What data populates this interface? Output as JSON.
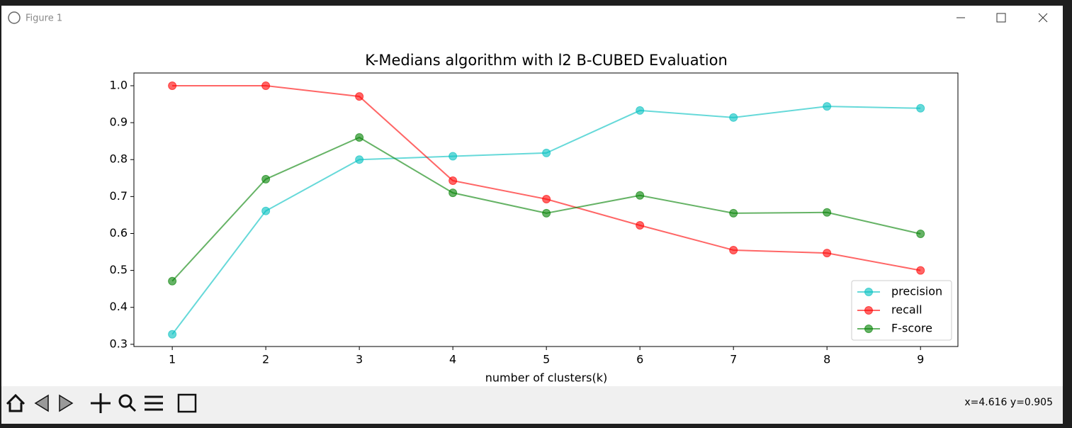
{
  "window": {
    "title": "Figure 1",
    "status": "x=4.616 y=0.905"
  },
  "chart_data": {
    "type": "line",
    "title": "K-Medians algorithm with l2 B-CUBED Evaluation",
    "x_label": "number of clusters(k)",
    "x": [
      1,
      2,
      3,
      4,
      5,
      6,
      7,
      8,
      9
    ],
    "series": [
      {
        "name": "precision",
        "color": "#00bfbf",
        "values": [
          0.327,
          0.661,
          0.8,
          0.809,
          0.818,
          0.933,
          0.914,
          0.944,
          0.939
        ]
      },
      {
        "name": "recall",
        "color": "#ff0000",
        "values": [
          1,
          1,
          0.971,
          0.743,
          0.693,
          0.622,
          0.555,
          0.547,
          0.5
        ]
      },
      {
        "name": "F-score",
        "color": "#008000",
        "values": [
          0.471,
          0.747,
          0.86,
          0.71,
          0.655,
          0.703,
          0.655,
          0.657,
          0.599
        ]
      }
    ],
    "xlim": [
      0.59,
      9.4
    ],
    "ylim": [
      0.294,
      1.0345
    ],
    "xticks": [
      1,
      2,
      3,
      4,
      5,
      6,
      7,
      8,
      9
    ],
    "yticks": [
      0.3,
      0.4,
      0.5,
      0.6,
      0.7,
      0.8,
      0.9,
      {
        "value": 1,
        "label": "1.0"
      }
    ],
    "legend": "lower right",
    "alpha": 0.6
  }
}
